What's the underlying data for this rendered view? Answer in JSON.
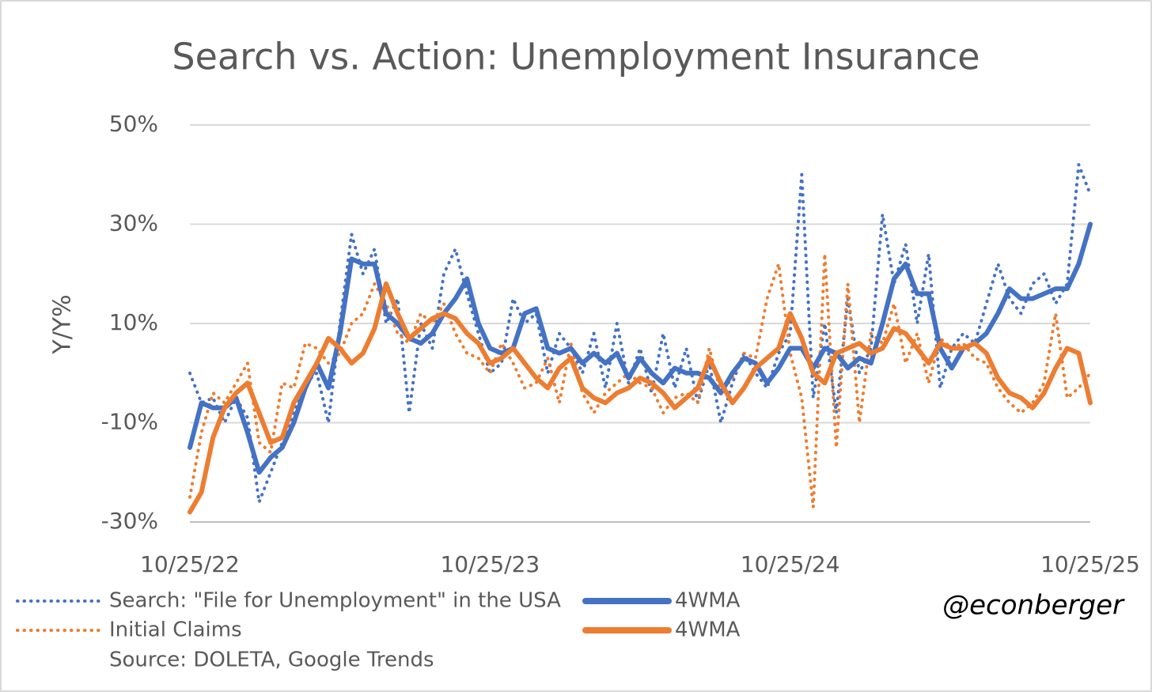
{
  "chart_data": {
    "type": "line",
    "title": "Search vs. Action: Unemployment Insurance",
    "y_label": "Y/Y%",
    "source": "Source: DOLETA, Google Trends",
    "annotation": "@econberger",
    "categories": [
      "10/25/22",
      null,
      null,
      null,
      null,
      null,
      null,
      null,
      null,
      null,
      null,
      null,
      null,
      null,
      null,
      null,
      null,
      null,
      null,
      null,
      null,
      null,
      null,
      null,
      null,
      null,
      "10/25/23",
      null,
      null,
      null,
      null,
      null,
      null,
      null,
      null,
      null,
      null,
      null,
      null,
      null,
      null,
      null,
      null,
      null,
      null,
      null,
      null,
      null,
      null,
      null,
      null,
      null,
      "10/25/24",
      null,
      null,
      null,
      null,
      null,
      null,
      null,
      null,
      null,
      null,
      null,
      null,
      null,
      null,
      null,
      null,
      null,
      null,
      null,
      null,
      null,
      null,
      null,
      null,
      null,
      "10/25/25"
    ],
    "ylim": [
      -30,
      50
    ],
    "yticks": [
      {
        "value": -30,
        "label": "-30%"
      },
      {
        "value": -10,
        "label": "-10%"
      },
      {
        "value": 10,
        "label": "10%"
      },
      {
        "value": 30,
        "label": "30%"
      },
      {
        "value": 50,
        "label": "50%"
      }
    ],
    "grid": true,
    "series": [
      {
        "name": "Search: \"File for Unemployment\" in the USA",
        "color": "#4472c4",
        "style": "dotted",
        "values": [
          0,
          -6,
          -5,
          -10,
          -5,
          -9,
          -26,
          -20,
          -14,
          -8,
          -2,
          0,
          -10,
          10,
          28,
          20,
          25,
          10,
          15,
          -8,
          10,
          5,
          20,
          25,
          16,
          8,
          0,
          2,
          15,
          10,
          12,
          0,
          8,
          5,
          0,
          8,
          -3,
          10,
          -2,
          5,
          -4,
          8,
          -3,
          5,
          -6,
          2,
          -10,
          -2,
          4,
          0,
          -3,
          4,
          8,
          40,
          -5,
          10,
          -8,
          15,
          0,
          5,
          32,
          18,
          26,
          10,
          24,
          -3,
          5,
          8,
          6,
          14,
          22,
          15,
          12,
          18,
          20,
          14,
          18,
          42,
          36
        ]
      },
      {
        "name": "4WMA",
        "color": "#4472c4",
        "style": "solid",
        "values": [
          -15,
          -6,
          -7,
          -7,
          -5,
          -12,
          -20,
          -17,
          -15,
          -10,
          -3,
          2,
          -3,
          8,
          23,
          22,
          22,
          12,
          10,
          7,
          6,
          8,
          12,
          15,
          19,
          10,
          5,
          4,
          5,
          12,
          13,
          5,
          4,
          5,
          2,
          4,
          2,
          4,
          -1,
          3,
          0,
          -2,
          1,
          0,
          0,
          -1,
          -4,
          0,
          3,
          2,
          -2,
          1,
          5,
          5,
          1,
          5,
          4,
          1,
          3,
          2,
          10,
          19,
          22,
          16,
          16,
          5,
          1,
          5,
          6,
          8,
          12,
          17,
          15,
          15,
          16,
          17,
          17,
          22,
          30
        ]
      },
      {
        "name": "Initial Claims",
        "color": "#ed7d31",
        "style": "dotted",
        "values": [
          -25,
          -12,
          -4,
          -6,
          -2,
          2,
          -14,
          -16,
          -2,
          -3,
          6,
          5,
          2,
          4,
          10,
          12,
          18,
          14,
          8,
          6,
          12,
          10,
          14,
          8,
          4,
          3,
          0,
          6,
          2,
          -3,
          -2,
          3,
          -6,
          6,
          -4,
          -8,
          -4,
          -2,
          0,
          -2,
          -3,
          -8,
          -5,
          -4,
          -6,
          5,
          -4,
          -1,
          4,
          3,
          15,
          22,
          4,
          -5,
          -27,
          24,
          -15,
          18,
          -10,
          8,
          6,
          14,
          2,
          8,
          -2,
          7,
          5,
          6,
          3,
          2,
          -3,
          -6,
          -8,
          -6,
          -2,
          12,
          -5,
          -3,
          0
        ]
      },
      {
        "name": "4WMA",
        "color": "#ed7d31",
        "style": "solid",
        "values": [
          -28,
          -24,
          -13,
          -7,
          -4,
          -2,
          -8,
          -14,
          -13,
          -6,
          -2,
          2,
          7,
          5,
          2,
          4,
          9,
          18,
          12,
          7,
          9,
          11,
          12,
          11,
          8,
          6,
          2,
          3,
          5,
          2,
          -1,
          -3,
          1,
          3,
          -3,
          -5,
          -6,
          -4,
          -3,
          -1,
          -2,
          -4,
          -7,
          -5,
          -3,
          3,
          -2,
          -6,
          -3,
          1,
          3,
          5,
          12,
          7,
          0,
          -2,
          4,
          5,
          6,
          4,
          5,
          9,
          8,
          5,
          2,
          6,
          5,
          5,
          6,
          4,
          -1,
          -4,
          -5,
          -7,
          -4,
          1,
          5,
          4,
          -6
        ]
      }
    ]
  }
}
